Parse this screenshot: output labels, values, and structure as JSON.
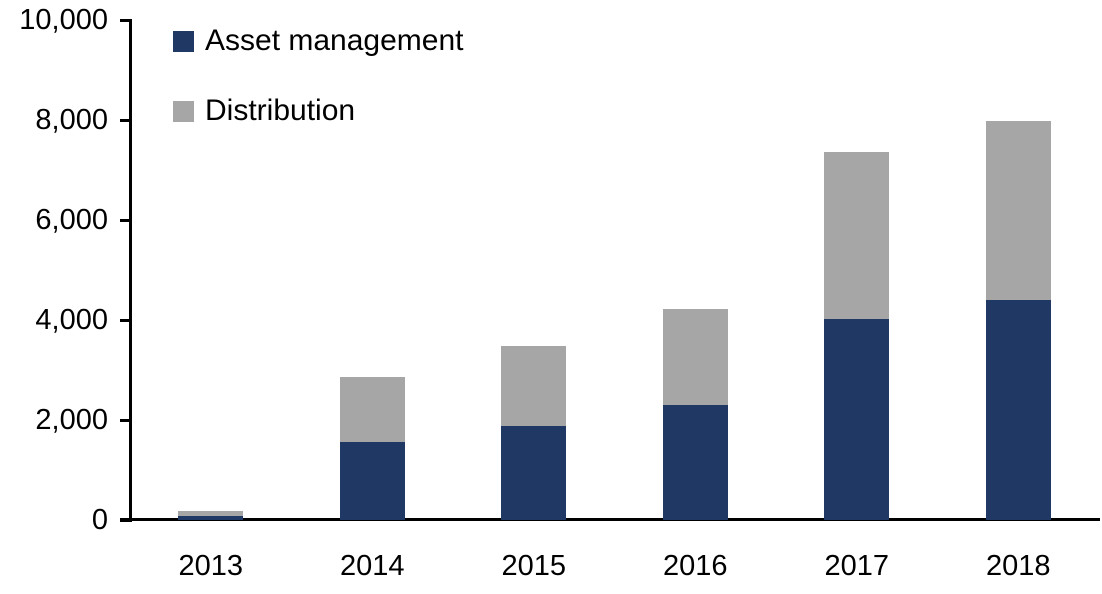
{
  "chart_data": {
    "type": "bar",
    "stacked": true,
    "categories": [
      "2013",
      "2014",
      "2015",
      "2016",
      "2017",
      "2018"
    ],
    "series": [
      {
        "name": "Asset management",
        "color": "#1F3864",
        "values": [
          90,
          1570,
          1890,
          2300,
          4030,
          4400
        ]
      },
      {
        "name": "Distribution",
        "color": "#A6A6A6",
        "values": [
          85,
          1300,
          1600,
          1930,
          3340,
          3590
        ]
      }
    ],
    "totals": [
      175,
      2870,
      3490,
      4230,
      7370,
      7990
    ],
    "ylim": [
      0,
      10000
    ],
    "ytick_interval": 2000,
    "ytick_labels": [
      "0",
      "2,000",
      "4,000",
      "6,000",
      "8,000",
      "10,000"
    ],
    "grid": false,
    "legend_position": "top-left",
    "axis_color": "#000000"
  }
}
